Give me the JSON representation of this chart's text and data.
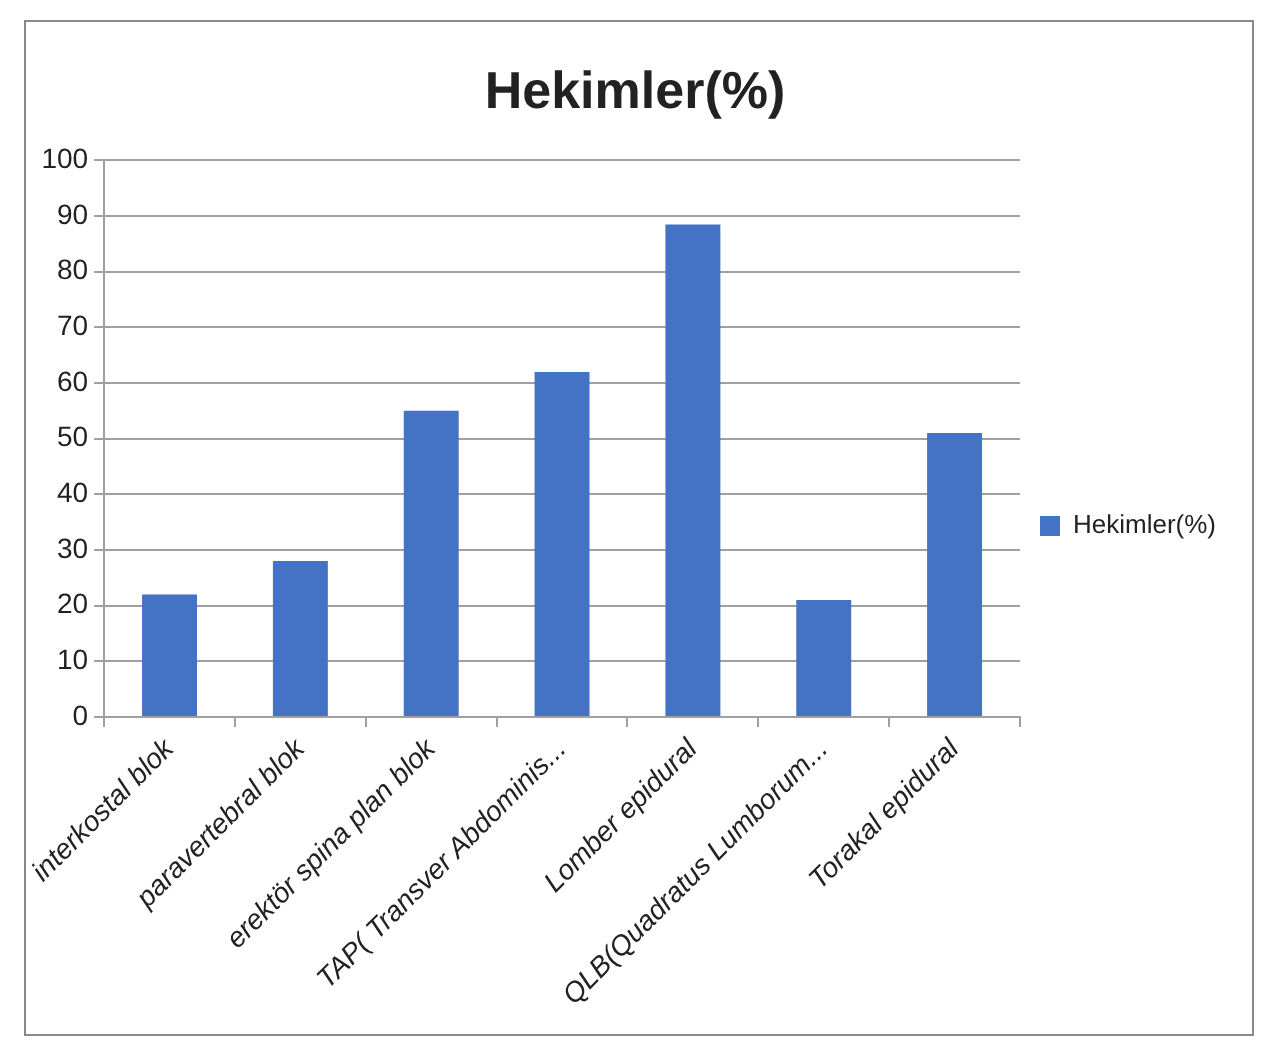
{
  "chart_data": {
    "type": "bar",
    "title": "Hekimler(%)",
    "categories": [
      "interkostal blok",
      "paravertebral blok",
      "erektör spina plan blok",
      "TAP( Transver Abdominis...",
      "Lomber epidural",
      "QLB(Quadratus Lumborum...",
      "Torakal epidural"
    ],
    "series": [
      {
        "name": "Hekimler(%)",
        "color": "#4472c4",
        "values": [
          22,
          28,
          55,
          62,
          88.5,
          21,
          51
        ]
      }
    ],
    "ylim": [
      0,
      100
    ],
    "yticks": [
      0,
      10,
      20,
      30,
      40,
      50,
      60,
      70,
      80,
      90,
      100
    ],
    "grid": "y",
    "legend": "right"
  }
}
